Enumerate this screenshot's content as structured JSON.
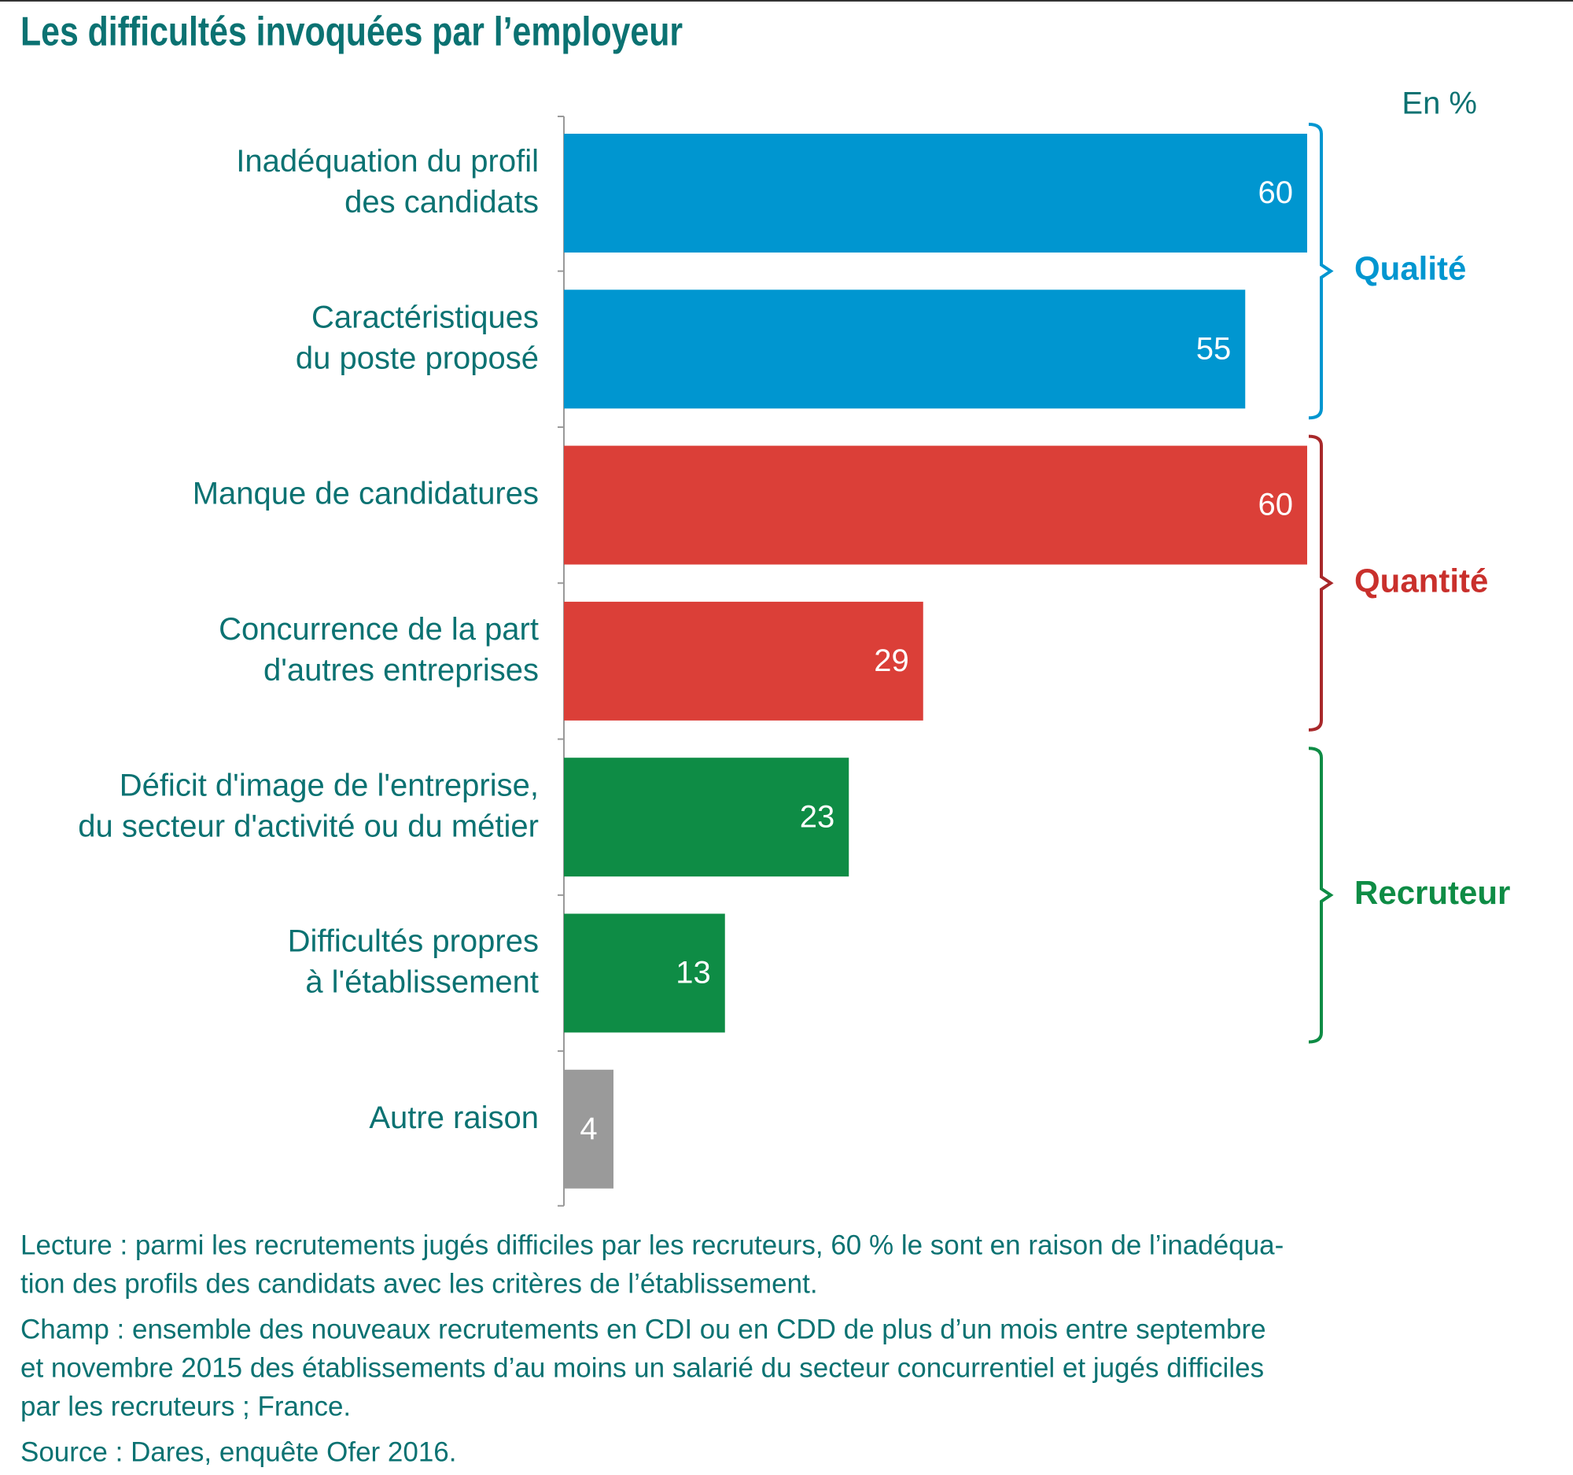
{
  "chart_data": {
    "type": "bar",
    "orientation": "horizontal",
    "title": "Les difficultés invoquées par l’employeur",
    "unit_label": "En %",
    "categories": [
      [
        "Inadéquation du profil",
        "des candidats"
      ],
      [
        "Caractéristiques",
        "du poste proposé"
      ],
      [
        "Manque de candidatures"
      ],
      [
        "Concurrence de la part",
        "d'autres entreprises"
      ],
      [
        "Déficit d'image de l'entreprise,",
        "du secteur d'activité ou du métier"
      ],
      [
        "Difficultés propres",
        "à l'établissement"
      ],
      [
        "Autre raison"
      ]
    ],
    "values": [
      60,
      55,
      60,
      29,
      23,
      13,
      4
    ],
    "colors": [
      "#0096d0",
      "#0096d0",
      "#db3f38",
      "#db3f38",
      "#0e8c45",
      "#0e8c45",
      "#9a9a9a"
    ],
    "groups": [
      {
        "name": "Qualité",
        "color": "#0096d0",
        "members": [
          0,
          1
        ]
      },
      {
        "name": "Quantité",
        "color": "#c9302c",
        "line_color": "#a8282a",
        "members": [
          2,
          3
        ]
      },
      {
        "name": "Recruteur",
        "color": "#0e8c45",
        "members": [
          4,
          5
        ]
      }
    ],
    "notes": [
      [
        "Lecture : parmi les recrutements jugés difficiles par les recruteurs, 60 % le sont en raison de l’inadéqua-",
        "tion des profils des candidats avec les critères de l’établissement."
      ],
      [
        "Champ : ensemble des nouveaux recrutements en CDI ou en CDD de plus d’un mois entre septembre",
        "et novembre 2015 des établissements d’au moins un salarié du secteur concurrentiel et jugés difficiles",
        "par les recruteurs ; France."
      ],
      [
        "Source : Dares, enquête Ofer 2016."
      ]
    ]
  }
}
